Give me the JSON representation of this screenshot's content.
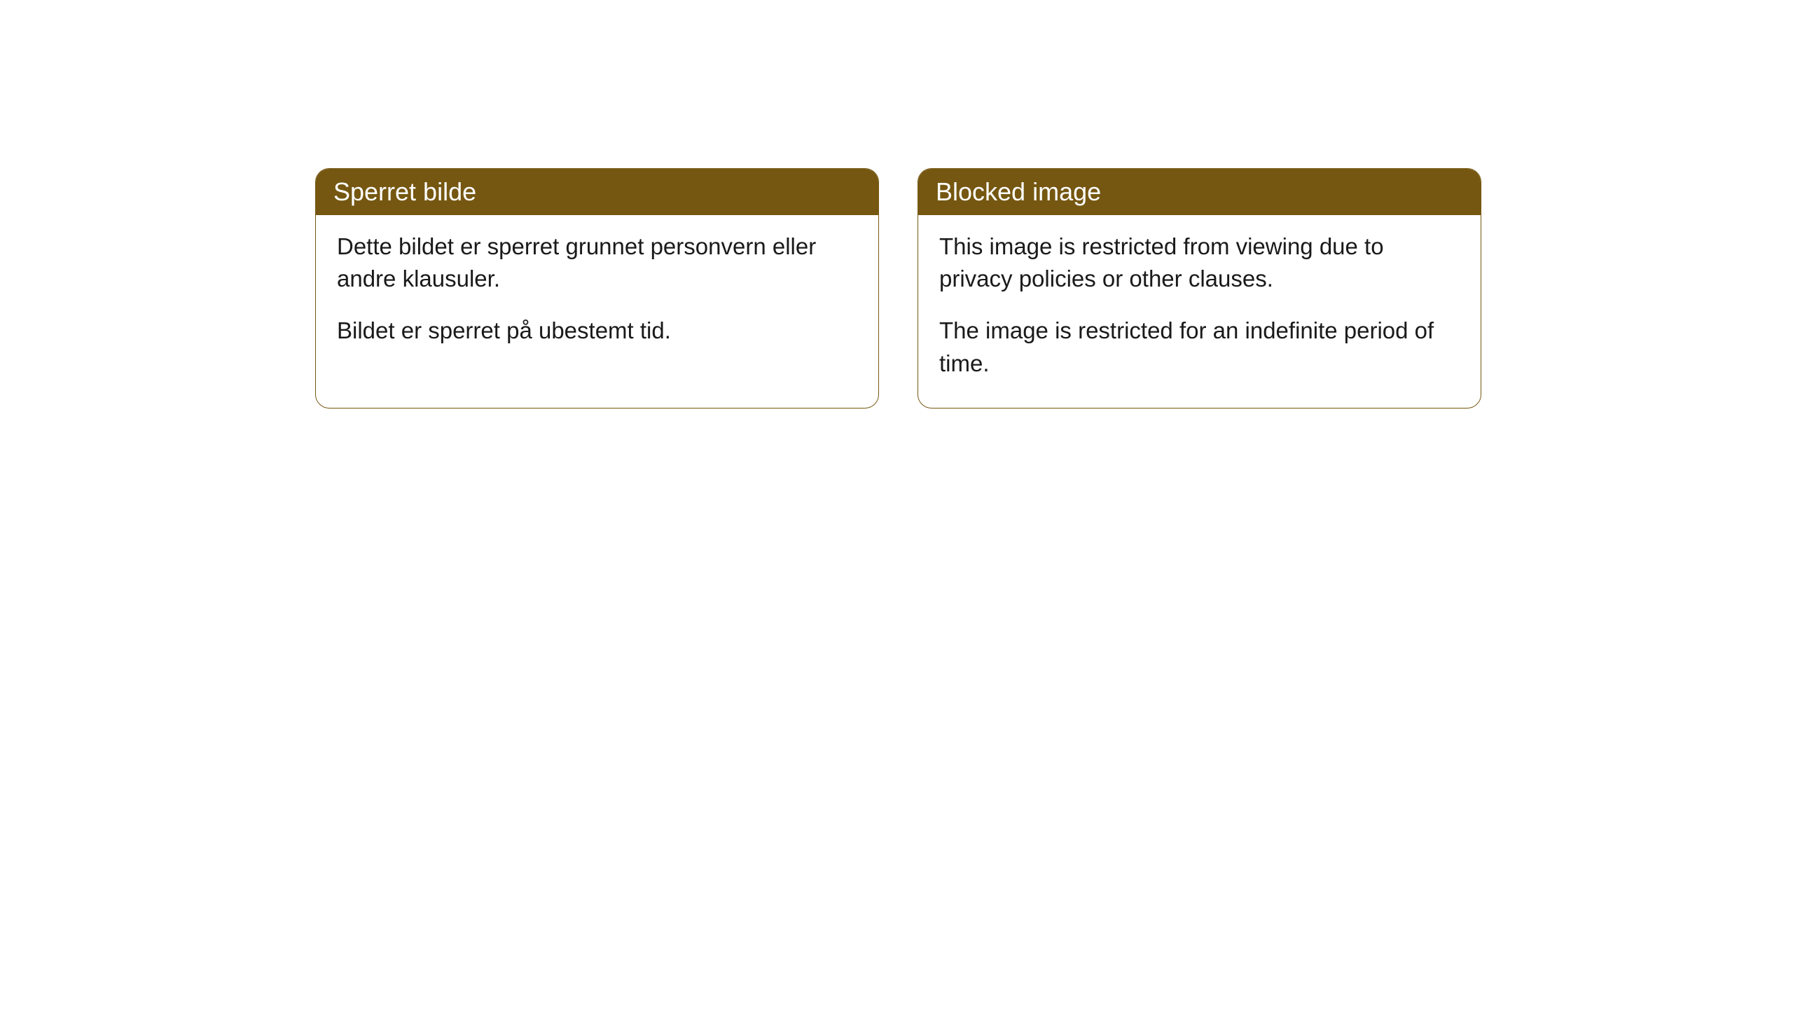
{
  "theme": {
    "header_bg": "#755711",
    "header_text": "#ffffff",
    "border_color": "#755711",
    "body_bg": "#ffffff",
    "body_text": "#1a1a1a",
    "header_fontsize": 36,
    "body_fontsize": 33,
    "border_radius": 20
  },
  "cards": [
    {
      "title": "Sperret bilde",
      "paragraphs": [
        "Dette bildet er sperret grunnet personvern eller andre klausuler.",
        "Bildet er sperret på ubestemt tid."
      ]
    },
    {
      "title": "Blocked image",
      "paragraphs": [
        "This image is restricted from viewing due to privacy policies or other clauses.",
        "The image is restricted for an indefinite period of time."
      ]
    }
  ]
}
